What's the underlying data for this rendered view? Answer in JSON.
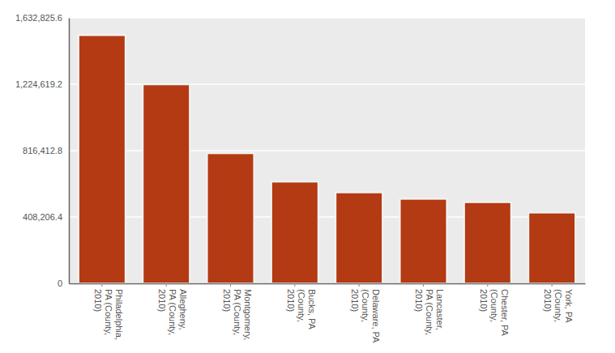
{
  "chart_data": {
    "type": "bar",
    "categories": [
      "Philadelphia, PA (County, 2010)",
      "Allegheny, PA (County, 2010)",
      "Montgomery, PA (County, 2010)",
      "Bucks, PA (County, 2010)",
      "Delaware, PA (County, 2010)",
      "Lancaster, PA (County, 2010)",
      "Chester, PA (County, 2010)",
      "York, PA (County, 2010)"
    ],
    "values": [
      1526006,
      1223348,
      799874,
      625249,
      558979,
      519445,
      498886,
      434972
    ],
    "color": "#b33a12",
    "ylim": [
      0,
      1632825.6
    ],
    "yticks": [
      0,
      {
        "value": 408206.4,
        "label": "408,206.4"
      },
      {
        "value": 816412.8,
        "label": "816,412.8"
      },
      {
        "value": 1224619.2,
        "label": "1,224,619.2"
      },
      {
        "value": 1632825.6,
        "label": "1,632,825.6"
      }
    ],
    "grid": true
  }
}
